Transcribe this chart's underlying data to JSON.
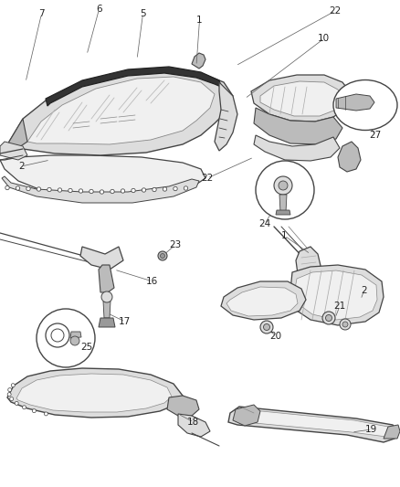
{
  "bg": "#ffffff",
  "lc": "#444444",
  "tc": "#222222",
  "figsize": [
    4.38,
    5.33
  ],
  "dpi": 100,
  "gray1": "#dddddd",
  "gray2": "#bbbbbb",
  "gray3": "#999999",
  "dark": "#333333",
  "very_light": "#f0f0f0"
}
